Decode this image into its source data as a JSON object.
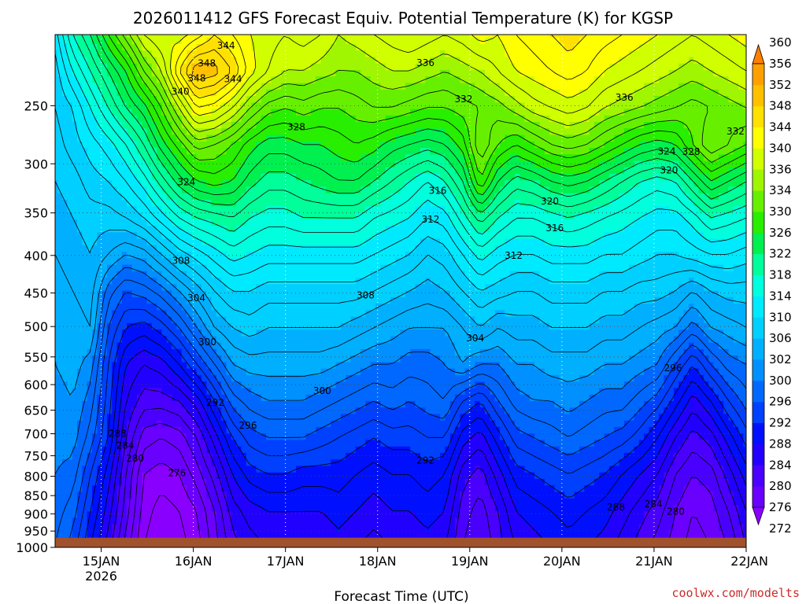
{
  "chart_data": {
    "type": "heatmap",
    "title": "2026011412 GFS Forecast Equiv. Potential Temperature (K) for KGSP",
    "xlabel": "Forecast Time (UTC)",
    "ylabel": "",
    "credit": "coolwx.com/modelts",
    "x_ticks": [
      {
        "label": "15JAN",
        "sub": "2026",
        "day": 15
      },
      {
        "label": "16JAN",
        "sub": "",
        "day": 16
      },
      {
        "label": "17JAN",
        "sub": "",
        "day": 17
      },
      {
        "label": "18JAN",
        "sub": "",
        "day": 18
      },
      {
        "label": "19JAN",
        "sub": "",
        "day": 19
      },
      {
        "label": "20JAN",
        "sub": "",
        "day": 20
      },
      {
        "label": "21JAN",
        "sub": "",
        "day": 21
      },
      {
        "label": "22JAN",
        "sub": "",
        "day": 22
      }
    ],
    "xlim_days": [
      14.5,
      22.0
    ],
    "y_ticks": [
      250,
      300,
      350,
      400,
      450,
      500,
      550,
      600,
      650,
      700,
      750,
      800,
      850,
      900,
      950,
      1000
    ],
    "ylim_hpa": [
      200,
      1000
    ],
    "y_scale": "log",
    "surface_hpa": 970,
    "colorbar": {
      "levels": [
        272,
        276,
        280,
        284,
        288,
        292,
        296,
        300,
        302,
        306,
        310,
        314,
        318,
        322,
        326,
        330,
        334,
        336,
        340,
        344,
        348,
        352,
        356,
        360
      ],
      "colors": [
        "#8a00ff",
        "#6a00ff",
        "#4a00ff",
        "#2200ff",
        "#0010ff",
        "#0040ff",
        "#0068ff",
        "#0090ff",
        "#00b0ff",
        "#00d0ff",
        "#00eaff",
        "#00ffdd",
        "#00ff9a",
        "#00f050",
        "#28ee00",
        "#66f000",
        "#a0f500",
        "#d0ff00",
        "#ffff00",
        "#ffe000",
        "#ffc000",
        "#ffa000",
        "#ff8000"
      ]
    },
    "series": [
      {
        "values": [
          [
            311,
            318,
            322,
            328,
            333,
            338,
            340,
            339,
            341,
            344,
            342,
            340,
            339,
            338,
            339,
            338,
            336,
            337,
            338,
            339,
            340,
            339,
            338,
            339,
            341,
            340,
            342,
            343,
            344,
            345,
            344,
            343,
            342,
            341,
            340,
            339,
            338,
            339,
            340,
            341
          ],
          [
            309,
            314,
            318,
            322,
            326,
            332,
            336,
            344,
            350,
            349,
            346,
            341,
            338,
            336,
            336,
            335,
            334,
            334,
            335,
            336,
            336,
            335,
            334,
            335,
            336,
            338,
            340,
            341,
            342,
            343,
            342,
            340,
            339,
            338,
            337,
            336,
            335,
            336,
            337,
            338
          ],
          [
            308,
            310,
            314,
            318,
            322,
            325,
            330,
            336,
            342,
            341,
            338,
            334,
            331,
            330,
            331,
            330,
            330,
            331,
            332,
            332,
            331,
            330,
            330,
            331,
            332,
            333,
            335,
            337,
            338,
            339,
            338,
            336,
            335,
            334,
            333,
            332,
            331,
            332,
            333,
            334
          ],
          [
            307,
            309,
            311,
            313,
            316,
            320,
            325,
            329,
            333,
            332,
            330,
            327,
            325,
            325,
            326,
            326,
            327,
            328,
            327,
            325,
            324,
            323,
            324,
            327,
            334,
            330,
            328,
            330,
            332,
            333,
            332,
            330,
            328,
            326,
            325,
            326,
            330,
            334,
            332,
            330
          ],
          [
            306,
            307,
            309,
            310,
            312,
            315,
            319,
            323,
            326,
            327,
            326,
            323,
            321,
            321,
            322,
            323,
            324,
            324,
            322,
            320,
            318,
            316,
            318,
            322,
            330,
            324,
            321,
            322,
            324,
            325,
            324,
            322,
            320,
            318,
            317,
            318,
            322,
            326,
            324,
            322
          ],
          [
            305,
            306,
            307,
            307,
            308,
            310,
            313,
            316,
            318,
            319,
            320,
            318,
            317,
            317,
            318,
            318,
            318,
            318,
            316,
            315,
            314,
            312,
            313,
            317,
            321,
            318,
            316,
            316,
            317,
            318,
            317,
            316,
            315,
            314,
            313,
            313,
            315,
            318,
            317,
            316
          ],
          [
            304,
            305,
            306,
            304,
            302,
            303,
            306,
            309,
            311,
            313,
            315,
            314,
            313,
            313,
            313,
            313,
            313,
            313,
            312,
            311,
            310,
            308,
            309,
            312,
            315,
            313,
            312,
            312,
            313,
            313,
            313,
            312,
            312,
            311,
            310,
            310,
            311,
            312,
            312,
            311
          ],
          [
            303,
            304,
            305,
            299,
            296,
            297,
            299,
            302,
            305,
            308,
            310,
            310,
            309,
            309,
            309,
            309,
            309,
            309,
            308,
            307,
            306,
            305,
            306,
            308,
            310,
            309,
            308,
            308,
            309,
            309,
            309,
            308,
            308,
            307,
            307,
            306,
            304,
            306,
            307,
            307
          ],
          [
            302,
            303,
            304,
            296,
            292,
            291,
            293,
            296,
            300,
            304,
            306,
            307,
            306,
            306,
            306,
            306,
            306,
            305,
            304,
            303,
            302,
            302,
            302,
            304,
            306,
            304,
            305,
            305,
            306,
            306,
            306,
            305,
            305,
            304,
            303,
            302,
            299,
            302,
            303,
            304
          ],
          [
            302,
            303,
            301,
            294,
            288,
            286,
            287,
            290,
            294,
            298,
            302,
            303,
            303,
            303,
            303,
            303,
            302,
            301,
            300,
            300,
            299,
            299,
            300,
            302,
            300,
            300,
            302,
            302,
            303,
            303,
            303,
            302,
            302,
            301,
            300,
            296,
            292,
            296,
            299,
            300
          ],
          [
            301,
            302,
            299,
            293,
            286,
            283,
            283,
            284,
            287,
            292,
            297,
            299,
            300,
            300,
            300,
            299,
            298,
            297,
            296,
            297,
            296,
            297,
            298,
            294,
            292,
            296,
            299,
            300,
            300,
            301,
            300,
            299,
            299,
            297,
            295,
            291,
            287,
            290,
            294,
            297
          ],
          [
            301,
            301,
            297,
            292,
            284,
            279,
            278,
            279,
            282,
            287,
            292,
            295,
            296,
            296,
            296,
            295,
            294,
            293,
            292,
            293,
            293,
            294,
            294,
            289,
            287,
            291,
            295,
            296,
            297,
            298,
            297,
            296,
            295,
            293,
            290,
            286,
            283,
            285,
            289,
            293
          ],
          [
            300,
            299,
            294,
            289,
            282,
            276,
            275,
            276,
            279,
            283,
            288,
            291,
            292,
            292,
            291,
            291,
            291,
            290,
            289,
            290,
            290,
            291,
            290,
            285,
            283,
            287,
            291,
            292,
            293,
            294,
            293,
            292,
            290,
            288,
            286,
            282,
            280,
            281,
            285,
            289
          ],
          [
            299,
            297,
            292,
            287,
            281,
            275,
            273,
            274,
            276,
            280,
            285,
            287,
            288,
            288,
            288,
            288,
            289,
            288,
            287,
            288,
            288,
            289,
            288,
            283,
            281,
            284,
            288,
            289,
            290,
            291,
            290,
            289,
            287,
            285,
            283,
            280,
            278,
            279,
            282,
            286
          ],
          [
            298,
            295,
            290,
            285,
            279,
            274,
            272,
            273,
            275,
            279,
            283,
            285,
            286,
            286,
            286,
            286,
            287,
            286,
            285,
            286,
            286,
            287,
            286,
            282,
            280,
            283,
            286,
            287,
            288,
            289,
            288,
            287,
            285,
            283,
            281,
            279,
            277,
            278,
            280,
            284
          ]
        ]
      }
    ]
  }
}
